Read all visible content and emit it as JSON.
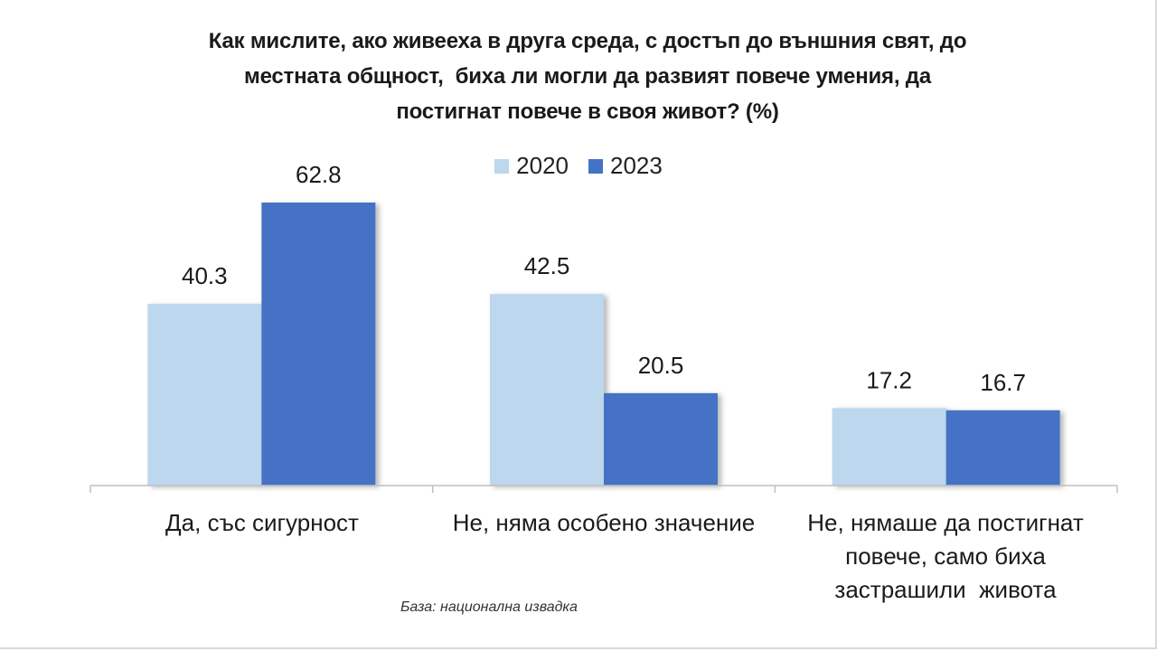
{
  "chart_data": {
    "type": "bar",
    "title_lines": [
      "Как мислите, ако живееха в друга среда, с достъп до външния свят, до",
      "местната общност,  биха ли могли да развият повече умения, да",
      "постигнат повече в своя живот? (%)"
    ],
    "categories": [
      [
        "Да, със сигурност"
      ],
      [
        "Не, няма особено значение"
      ],
      [
        "Не, нямаше да постигнат",
        "повече, само биха",
        "застрашили  живота"
      ]
    ],
    "series": [
      {
        "name": "2020",
        "values": [
          40.3,
          42.5,
          17.2
        ],
        "value_labels": [
          "40.3",
          "42.5",
          "17.2"
        ],
        "color": "#bdd7ee"
      },
      {
        "name": "2023",
        "values": [
          62.8,
          20.5,
          16.7
        ],
        "value_labels": [
          "62.8",
          "20.5",
          "16.7"
        ],
        "color": "#4472c4"
      }
    ],
    "ylim": [
      0,
      65
    ],
    "grid": false,
    "legend_position": "top-center",
    "source_note": "База: национална извадка"
  }
}
